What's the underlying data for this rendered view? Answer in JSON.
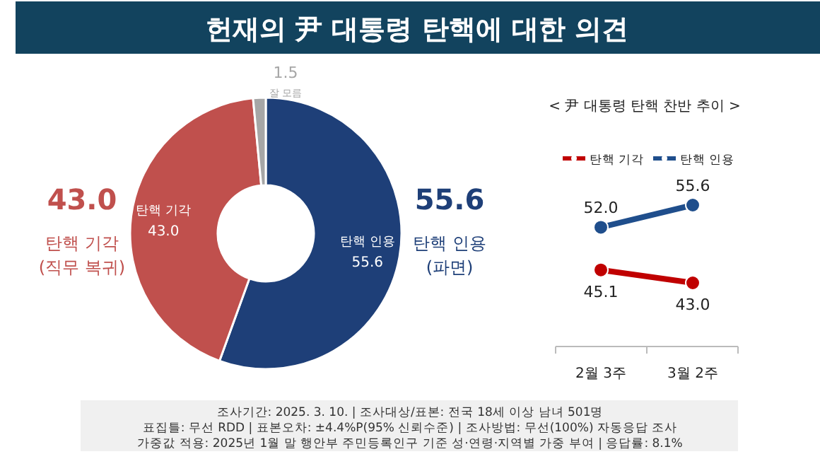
{
  "chart_data": [
    {
      "type": "donut",
      "title": "헌재의 尹 대통령 탄핵에 대한 의견",
      "categories": [
        "탄핵 인용",
        "탄핵 기각",
        "잘 모름"
      ],
      "values": [
        55.6,
        43.0,
        1.5
      ],
      "colors": [
        "#1e3f78",
        "#c0504d",
        "#a6a6a6"
      ],
      "value_labels": [
        "55.6",
        "43.0",
        "1.5"
      ],
      "annotations": [
        {
          "text": "55.6",
          "x": "탄핵 인용"
        },
        {
          "text": "(파면)",
          "x": "탄핵 인용"
        },
        {
          "text": "43.0",
          "x": "탄핵 기각"
        },
        {
          "text": "(직무 복귀)",
          "x": "탄핵 기각"
        },
        "조사기간: 2025. 3. 10. | 조사대상/표본: 전국 18세 이상 남녀 501명",
        "표집틀: 무선 RDD | 표본오차: ±4.4%P(95% 신뢰수준) | 조사방법: 무선(100%) 자동응답 조사",
        "가중값 적용: 2025년 1월 말 행안부 주민등록인구 기준 성·연령·지역별 가중 부여 | 응답률: 8.1%"
      ]
    },
    {
      "type": "line",
      "title": "< 尹 대통령 탄핵 찬반 추이 >",
      "categories": [
        "2월 3주",
        "3월 2주"
      ],
      "series": [
        {
          "name": "탄핵 기각",
          "color": "#c00000",
          "values": [
            45.1,
            43.0
          ],
          "value_labels": [
            "45.1",
            "43.0"
          ]
        },
        {
          "name": "탄핵 인용",
          "color": "#1f4e8c",
          "values": [
            52.0,
            55.6
          ],
          "value_labels": [
            "52.0",
            "55.6"
          ]
        }
      ],
      "marker": "circle",
      "legend": "top"
    }
  ]
}
